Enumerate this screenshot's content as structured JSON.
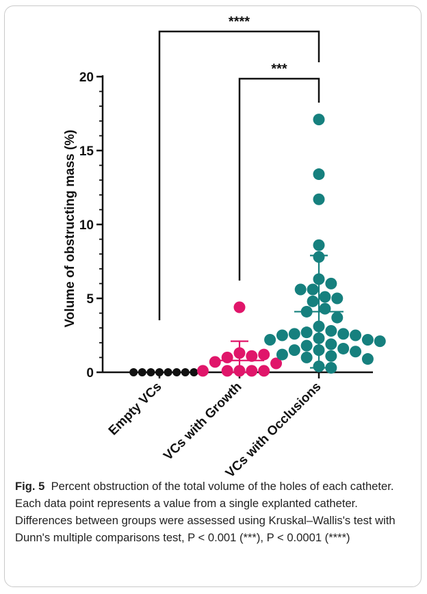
{
  "chart_data": {
    "type": "scatter",
    "ylabel": "Volume of obstructing mass (%)",
    "ylim": [
      0,
      20
    ],
    "yticks": [
      0,
      5,
      10,
      15,
      20
    ],
    "categories": [
      "Empty VCs",
      "VCs with Growth",
      "VCs with Occlusions"
    ],
    "series": [
      {
        "values": [
          0,
          0,
          0,
          0,
          0,
          0,
          0,
          0
        ],
        "mean": 0,
        "sd": 0,
        "color": "#111111"
      },
      {
        "values": [
          4.4,
          1.3,
          1.1,
          1.0,
          1.2,
          0.7,
          0.6,
          0.1,
          0.1,
          0.1,
          0.1,
          0.1
        ],
        "mean": 0.8,
        "sd": 1.3,
        "color": "#e0166a"
      },
      {
        "values": [
          17.1,
          13.4,
          11.7,
          8.6,
          7.8,
          6.3,
          6.0,
          5.6,
          5.6,
          5.1,
          5.0,
          4.8,
          4.3,
          4.1,
          3.7,
          3.1,
          2.8,
          2.7,
          2.6,
          2.6,
          2.5,
          2.5,
          2.3,
          2.2,
          2.2,
          2.1,
          1.9,
          1.8,
          1.6,
          1.5,
          1.5,
          1.4,
          1.2,
          1.1,
          1.0,
          0.9,
          0.4,
          0.3
        ],
        "mean": 4.1,
        "sd": 3.8,
        "color": "#16807e"
      }
    ],
    "comparisons": [
      {
        "from": "Empty VCs",
        "to": "VCs with Occlusions",
        "label": "****"
      },
      {
        "from": "VCs with Growth",
        "to": "VCs with Occlusions",
        "label": "***"
      }
    ]
  },
  "caption": {
    "label": "Fig. 5",
    "text": "Percent obstruction of the total volume of the holes of each catheter. Each data point represents a value from a single explanted catheter. Differences between groups were assessed using Kruskal–Wallis's test with Dunn's multiple comparisons test, P < 0.001 (***), P < 0.0001 (****)"
  }
}
